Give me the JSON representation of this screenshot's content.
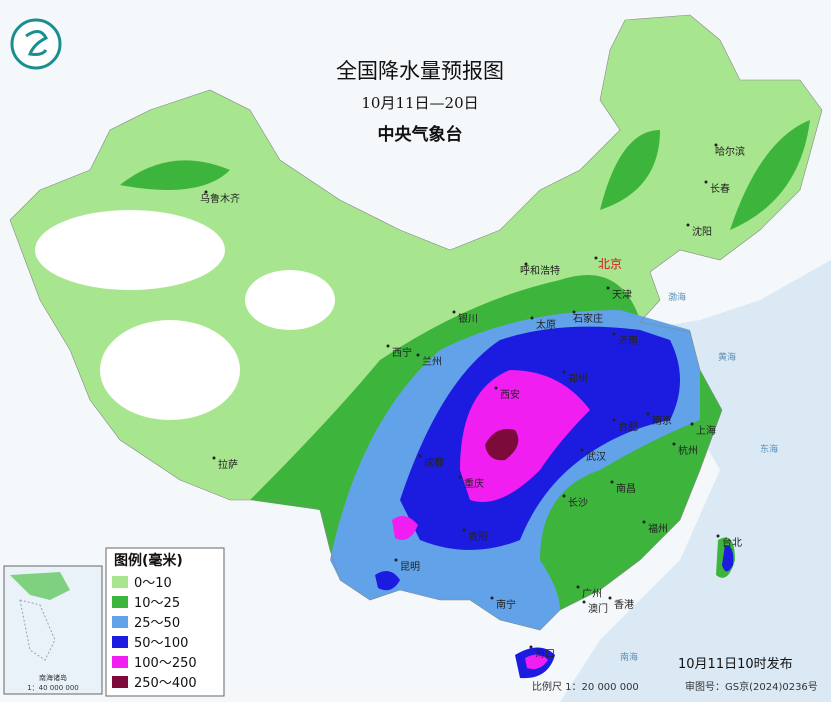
{
  "header": {
    "title": "全国降水量预报图",
    "date_range": "10月11日—20日",
    "issuer": "中央气象台"
  },
  "legend": {
    "title": "图例(毫米)",
    "items": [
      {
        "label": "0～10",
        "color": "#a8e58f"
      },
      {
        "label": "10～25",
        "color": "#3db53d"
      },
      {
        "label": "25～50",
        "color": "#62a2e8"
      },
      {
        "label": "50～100",
        "color": "#1c1ce0"
      },
      {
        "label": "100～250",
        "color": "#f01ef0"
      },
      {
        "label": "250～400",
        "color": "#7c0a3a"
      }
    ]
  },
  "cities": [
    "乌鲁木齐",
    "哈尔滨",
    "长春",
    "沈阳",
    "北京",
    "天津",
    "呼和浩特",
    "石家庄",
    "太原",
    "银川",
    "西宁",
    "兰州",
    "济南",
    "郑州",
    "西安",
    "合肥",
    "南京",
    "上海",
    "杭州",
    "成都",
    "重庆",
    "武汉",
    "长沙",
    "南昌",
    "福州",
    "台北",
    "拉萨",
    "贵阳",
    "昆明",
    "南宁",
    "广州",
    "澳门",
    "香港",
    "海口"
  ],
  "seas": [
    "渤海",
    "黄海",
    "东海",
    "南海"
  ],
  "inset": {
    "title": "南海诸岛",
    "scale": "1：40 000 000"
  },
  "footer": {
    "release": "10月11日10时发布",
    "scale": "比例尺 1：20 000 000",
    "approval": "审图号：GS京(2024)0236号"
  }
}
